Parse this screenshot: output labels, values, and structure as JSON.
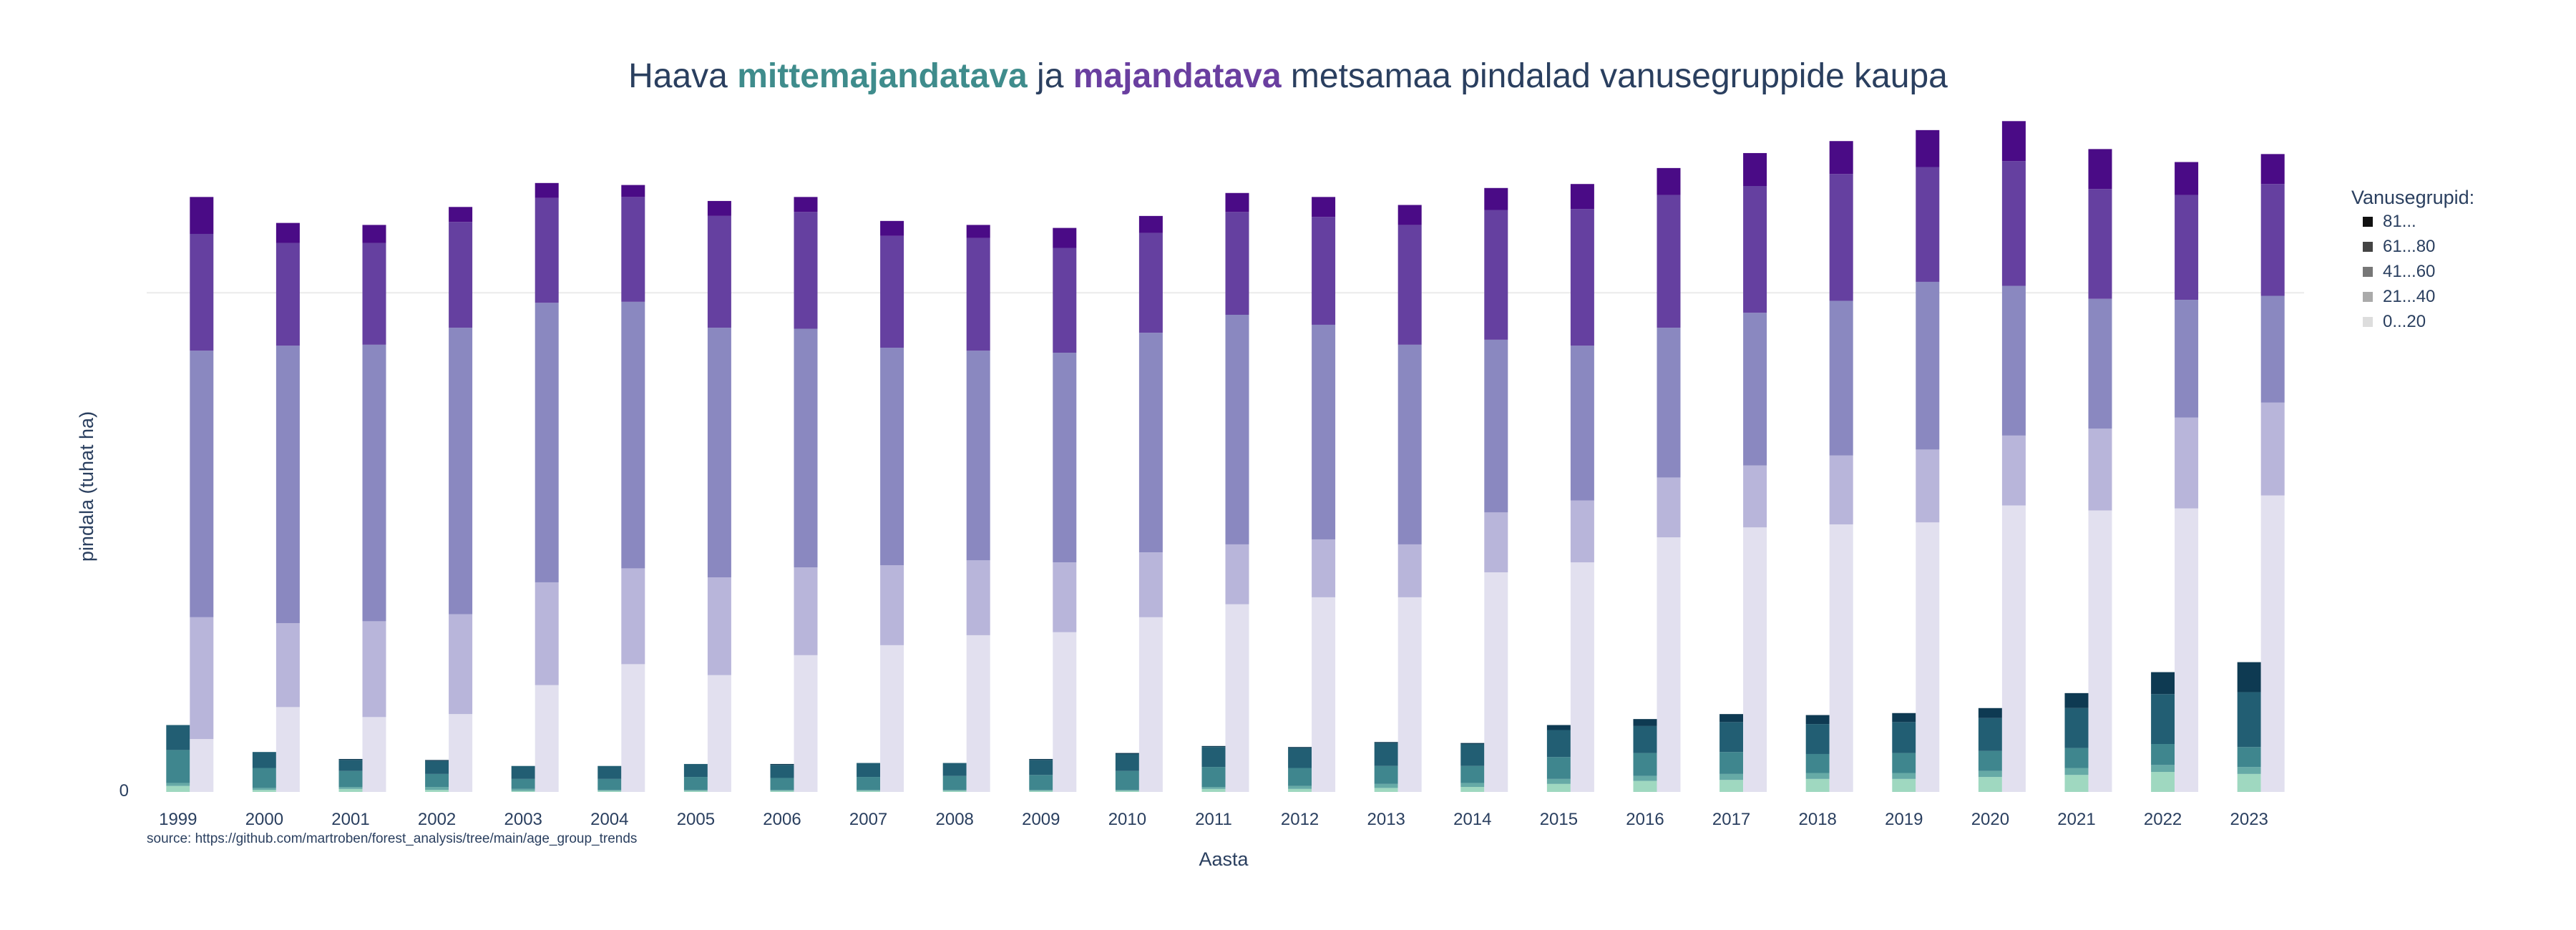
{
  "chart_data": {
    "type": "bar",
    "title": {
      "parts": [
        {
          "text": "Haava ",
          "bold": false,
          "color": "#2a3f5f"
        },
        {
          "text": "mittemajandatava",
          "bold": true,
          "color": "#3f8c8c"
        },
        {
          "text": " ja ",
          "bold": false,
          "color": "#2a3f5f"
        },
        {
          "text": "majandatava",
          "bold": true,
          "color": "#6a3fa0"
        },
        {
          "text": " metsamaa pindalad vanusegruppide kaupa",
          "bold": false,
          "color": "#2a3f5f"
        }
      ]
    },
    "xlabel": "Aasta",
    "ylabel": "pindala (tuhat ha)",
    "ytick_labels": [
      "0"
    ],
    "ylim": [
      0,
      650
    ],
    "gridline_value": 500,
    "source_text": "source: https://github.com/martroben/forest_analysis/tree/main/age_group_trends",
    "categories": [
      "1999",
      "2000",
      "2001",
      "2002",
      "2003",
      "2004",
      "2005",
      "2006",
      "2007",
      "2008",
      "2009",
      "2010",
      "2011",
      "2012",
      "2013",
      "2014",
      "2015",
      "2016",
      "2017",
      "2018",
      "2019",
      "2020",
      "2021",
      "2022",
      "2023"
    ],
    "legend": {
      "title": "Vanusegrupid:",
      "position": "right",
      "entries": [
        {
          "label": "81...",
          "color": "#111111"
        },
        {
          "label": "61...80",
          "color": "#444444"
        },
        {
          "label": "41...60",
          "color": "#777777"
        },
        {
          "label": "21...40",
          "color": "#aaaaaa"
        },
        {
          "label": "0...20",
          "color": "#dddddd"
        }
      ]
    },
    "groups": [
      {
        "name": "mittemajandatava",
        "series": [
          {
            "name": "0...20",
            "color": "#9fd8c0",
            "values": [
              6,
              2,
              3,
              2,
              1,
              1,
              1,
              1,
              1,
              1,
              1,
              1,
              3,
              3,
              4,
              5,
              8,
              11,
              12,
              13,
              13,
              15,
              17,
              20,
              18
            ]
          },
          {
            "name": "21...40",
            "color": "#66aaa6",
            "values": [
              3,
              2,
              2,
              3,
              2,
              1,
              1,
              1,
              1,
              1,
              1,
              1,
              2,
              3,
              4,
              4,
              5,
              5,
              6,
              6,
              6,
              6,
              7,
              7,
              7
            ]
          },
          {
            "name": "41...60",
            "color": "#3f868e",
            "values": [
              33,
              20,
              16,
              13,
              10,
              11,
              13,
              12,
              13,
              14,
              15,
              19,
              20,
              18,
              18,
              17,
              22,
              23,
              22,
              19,
              20,
              20,
              20,
              21,
              20
            ]
          },
          {
            "name": "61...80",
            "color": "#225e73",
            "values": [
              25,
              16,
              11,
              13,
              13,
              13,
              13,
              13,
              14,
              13,
              15,
              17,
              20,
              20,
              23,
              22,
              27,
              27,
              30,
              30,
              31,
              33,
              40,
              50,
              55
            ]
          },
          {
            "name": "81...",
            "color": "#0e3a52",
            "values": [
              0,
              0,
              1,
              1,
              0,
              0,
              0,
              1,
              0,
              0,
              1,
              1,
              1,
              1,
              1,
              1,
              5,
              7,
              8,
              9,
              9,
              10,
              15,
              22,
              30
            ]
          }
        ]
      },
      {
        "name": "majandatava",
        "series": [
          {
            "name": "0...20",
            "color": "#e2e0ef",
            "values": [
              53,
              85,
              75,
              78,
              107,
              128,
              117,
              137,
              147,
              157,
              160,
              175,
              188,
              195,
              195,
              220,
              230,
              255,
              265,
              268,
              270,
              287,
              282,
              284,
              297
            ]
          },
          {
            "name": "21...40",
            "color": "#b8b5da",
            "values": [
              122,
              84,
              96,
              100,
              103,
              96,
              98,
              88,
              80,
              75,
              70,
              65,
              60,
              58,
              53,
              60,
              62,
              60,
              62,
              69,
              73,
              70,
              82,
              91,
              93
            ]
          },
          {
            "name": "41...60",
            "color": "#8a88c0",
            "values": [
              267,
              278,
              277,
              287,
              280,
              267,
              250,
              239,
              218,
              210,
              210,
              220,
              230,
              215,
              200,
              173,
              155,
              150,
              153,
              155,
              168,
              150,
              130,
              118,
              107
            ]
          },
          {
            "name": "61...80",
            "color": "#6540a0",
            "values": [
              117,
              103,
              102,
              106,
              105,
              105,
              112,
              117,
              112,
              113,
              105,
              100,
              103,
              108,
              120,
              130,
              137,
              133,
              127,
              127,
              115,
              125,
              110,
              105,
              112
            ]
          },
          {
            "name": "81...",
            "color": "#4a0b86",
            "values": [
              37,
              20,
              18,
              15,
              15,
              12,
              15,
              15,
              15,
              13,
              20,
              17,
              19,
              20,
              20,
              22,
              25,
              27,
              33,
              33,
              37,
              40,
              40,
              33,
              30
            ]
          }
        ]
      }
    ]
  }
}
